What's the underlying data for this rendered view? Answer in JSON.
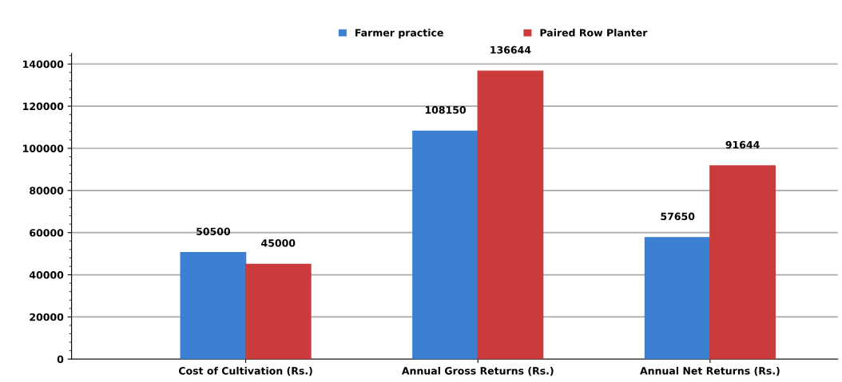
{
  "chart_data": {
    "type": "bar",
    "categories": [
      "Cost of Cultivation (Rs.)",
      "Annual Gross Returns (Rs.)",
      "Annual Net Returns (Rs.)"
    ],
    "series": [
      {
        "name": "Farmer practice",
        "color": "#3b80d2",
        "values": [
          50500,
          108150,
          57650
        ]
      },
      {
        "name": "Paired Row Planter",
        "color": "#cc3b3b",
        "values": [
          45000,
          136644,
          91644
        ]
      }
    ],
    "ylim": [
      0,
      145000
    ],
    "yticks": [
      0,
      20000,
      40000,
      60000,
      80000,
      100000,
      120000,
      140000
    ],
    "grid": "y",
    "legend": "top",
    "data_labels": true
  }
}
